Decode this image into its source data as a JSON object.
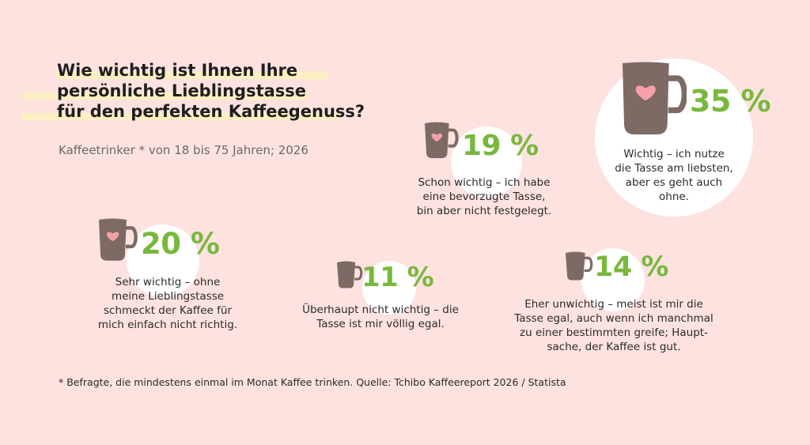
{
  "title": [
    "Wie wichtig ist Ihnen Ihre",
    "persönliche Lieblingstasse",
    "für den perfekten Kaffeegenuss?"
  ],
  "subtitle": "Kaffeetrinker * von 18 bis 75 Jahren; 2026",
  "footnote": "* Befragte, die mindestens einmal im Monat Kaffee trinken. Quelle: Tchibo Kaffeereport 2026 / Statista",
  "colors": {
    "background": "#fde2e0",
    "accent": "#78b83c",
    "mug": "#7e6a64",
    "heart": "#f4a0a8",
    "highlight": "#fcefc2"
  },
  "icons": {
    "mug": "coffee-mug-icon",
    "heart": "heart-icon"
  },
  "chart_data": {
    "type": "bubble",
    "categories": [
      "Sehr wichtig – ohne meine Lieblingstasse schmeckt der Kaffee für mich einfach nicht richtig.",
      "Wichtig – ich nutze die Tasse am liebsten, aber es geht auch ohne.",
      "Schon wichtig – ich habe eine bevorzugte Tasse, bin aber nicht festgelegt.",
      "Eher unwichtig – meist ist mir die Tasse egal, auch wenn ich manchmal zu einer bestimmten greife; Hauptsache, der Kaffee ist gut.",
      "Überhaupt nicht wichtig – die Tasse ist mir völlig egal."
    ],
    "values": [
      20,
      35,
      19,
      14,
      11
    ],
    "value_labels": [
      "20 %",
      "35 %",
      "19 %",
      "14 %",
      "11 %"
    ],
    "unit": "%",
    "items": [
      {
        "pct": "20 %",
        "value": 20,
        "desc": "Sehr wichtig – ohne\nmeine Lieblingstasse\nschmeckt der Kaffee für\nmich einfach nicht richtig."
      },
      {
        "pct": "35 %",
        "value": 35,
        "desc": "Wichtig – ich nutze\ndie Tasse am liebsten,\naber es geht auch\nohne."
      },
      {
        "pct": "19 %",
        "value": 19,
        "desc": "Schon wichtig – ich habe\neine bevorzugte Tasse,\nbin aber nicht festgelegt."
      },
      {
        "pct": "14 %",
        "value": 14,
        "desc": "Eher unwichtig – meist ist mir die\nTasse egal, auch wenn ich manchmal\nzu einer bestimmten greife; Haupt-\nsache, der Kaffee ist gut."
      },
      {
        "pct": "11 %",
        "value": 11,
        "desc": "Überhaupt nicht wichtig – die\nTasse ist mir völlig egal."
      }
    ]
  }
}
